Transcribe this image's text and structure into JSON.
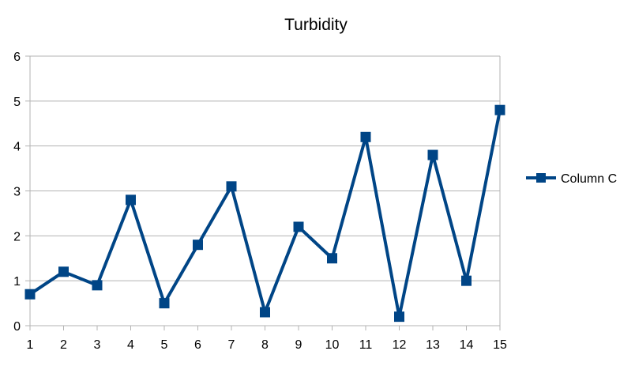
{
  "chart_data": {
    "type": "line",
    "title": "Turbidity",
    "xlabel": "",
    "ylabel": "",
    "x": [
      1,
      2,
      3,
      4,
      5,
      6,
      7,
      8,
      9,
      10,
      11,
      12,
      13,
      14,
      15
    ],
    "x_tick_labels": [
      "1",
      "2",
      "3",
      "4",
      "5",
      "6",
      "7",
      "8",
      "9",
      "10",
      "11",
      "12",
      "13",
      "14",
      "15"
    ],
    "y_tick_labels": [
      "0",
      "1",
      "2",
      "3",
      "4",
      "5",
      "6"
    ],
    "ylim": [
      0,
      6
    ],
    "grid": true,
    "legend_position": "right",
    "series": [
      {
        "name": "Column C",
        "color": "#004586",
        "marker": "square",
        "values": [
          0.7,
          1.2,
          0.9,
          2.8,
          0.5,
          1.8,
          3.1,
          0.3,
          2.2,
          1.5,
          4.2,
          0.2,
          3.8,
          1.0,
          4.8
        ]
      }
    ]
  }
}
